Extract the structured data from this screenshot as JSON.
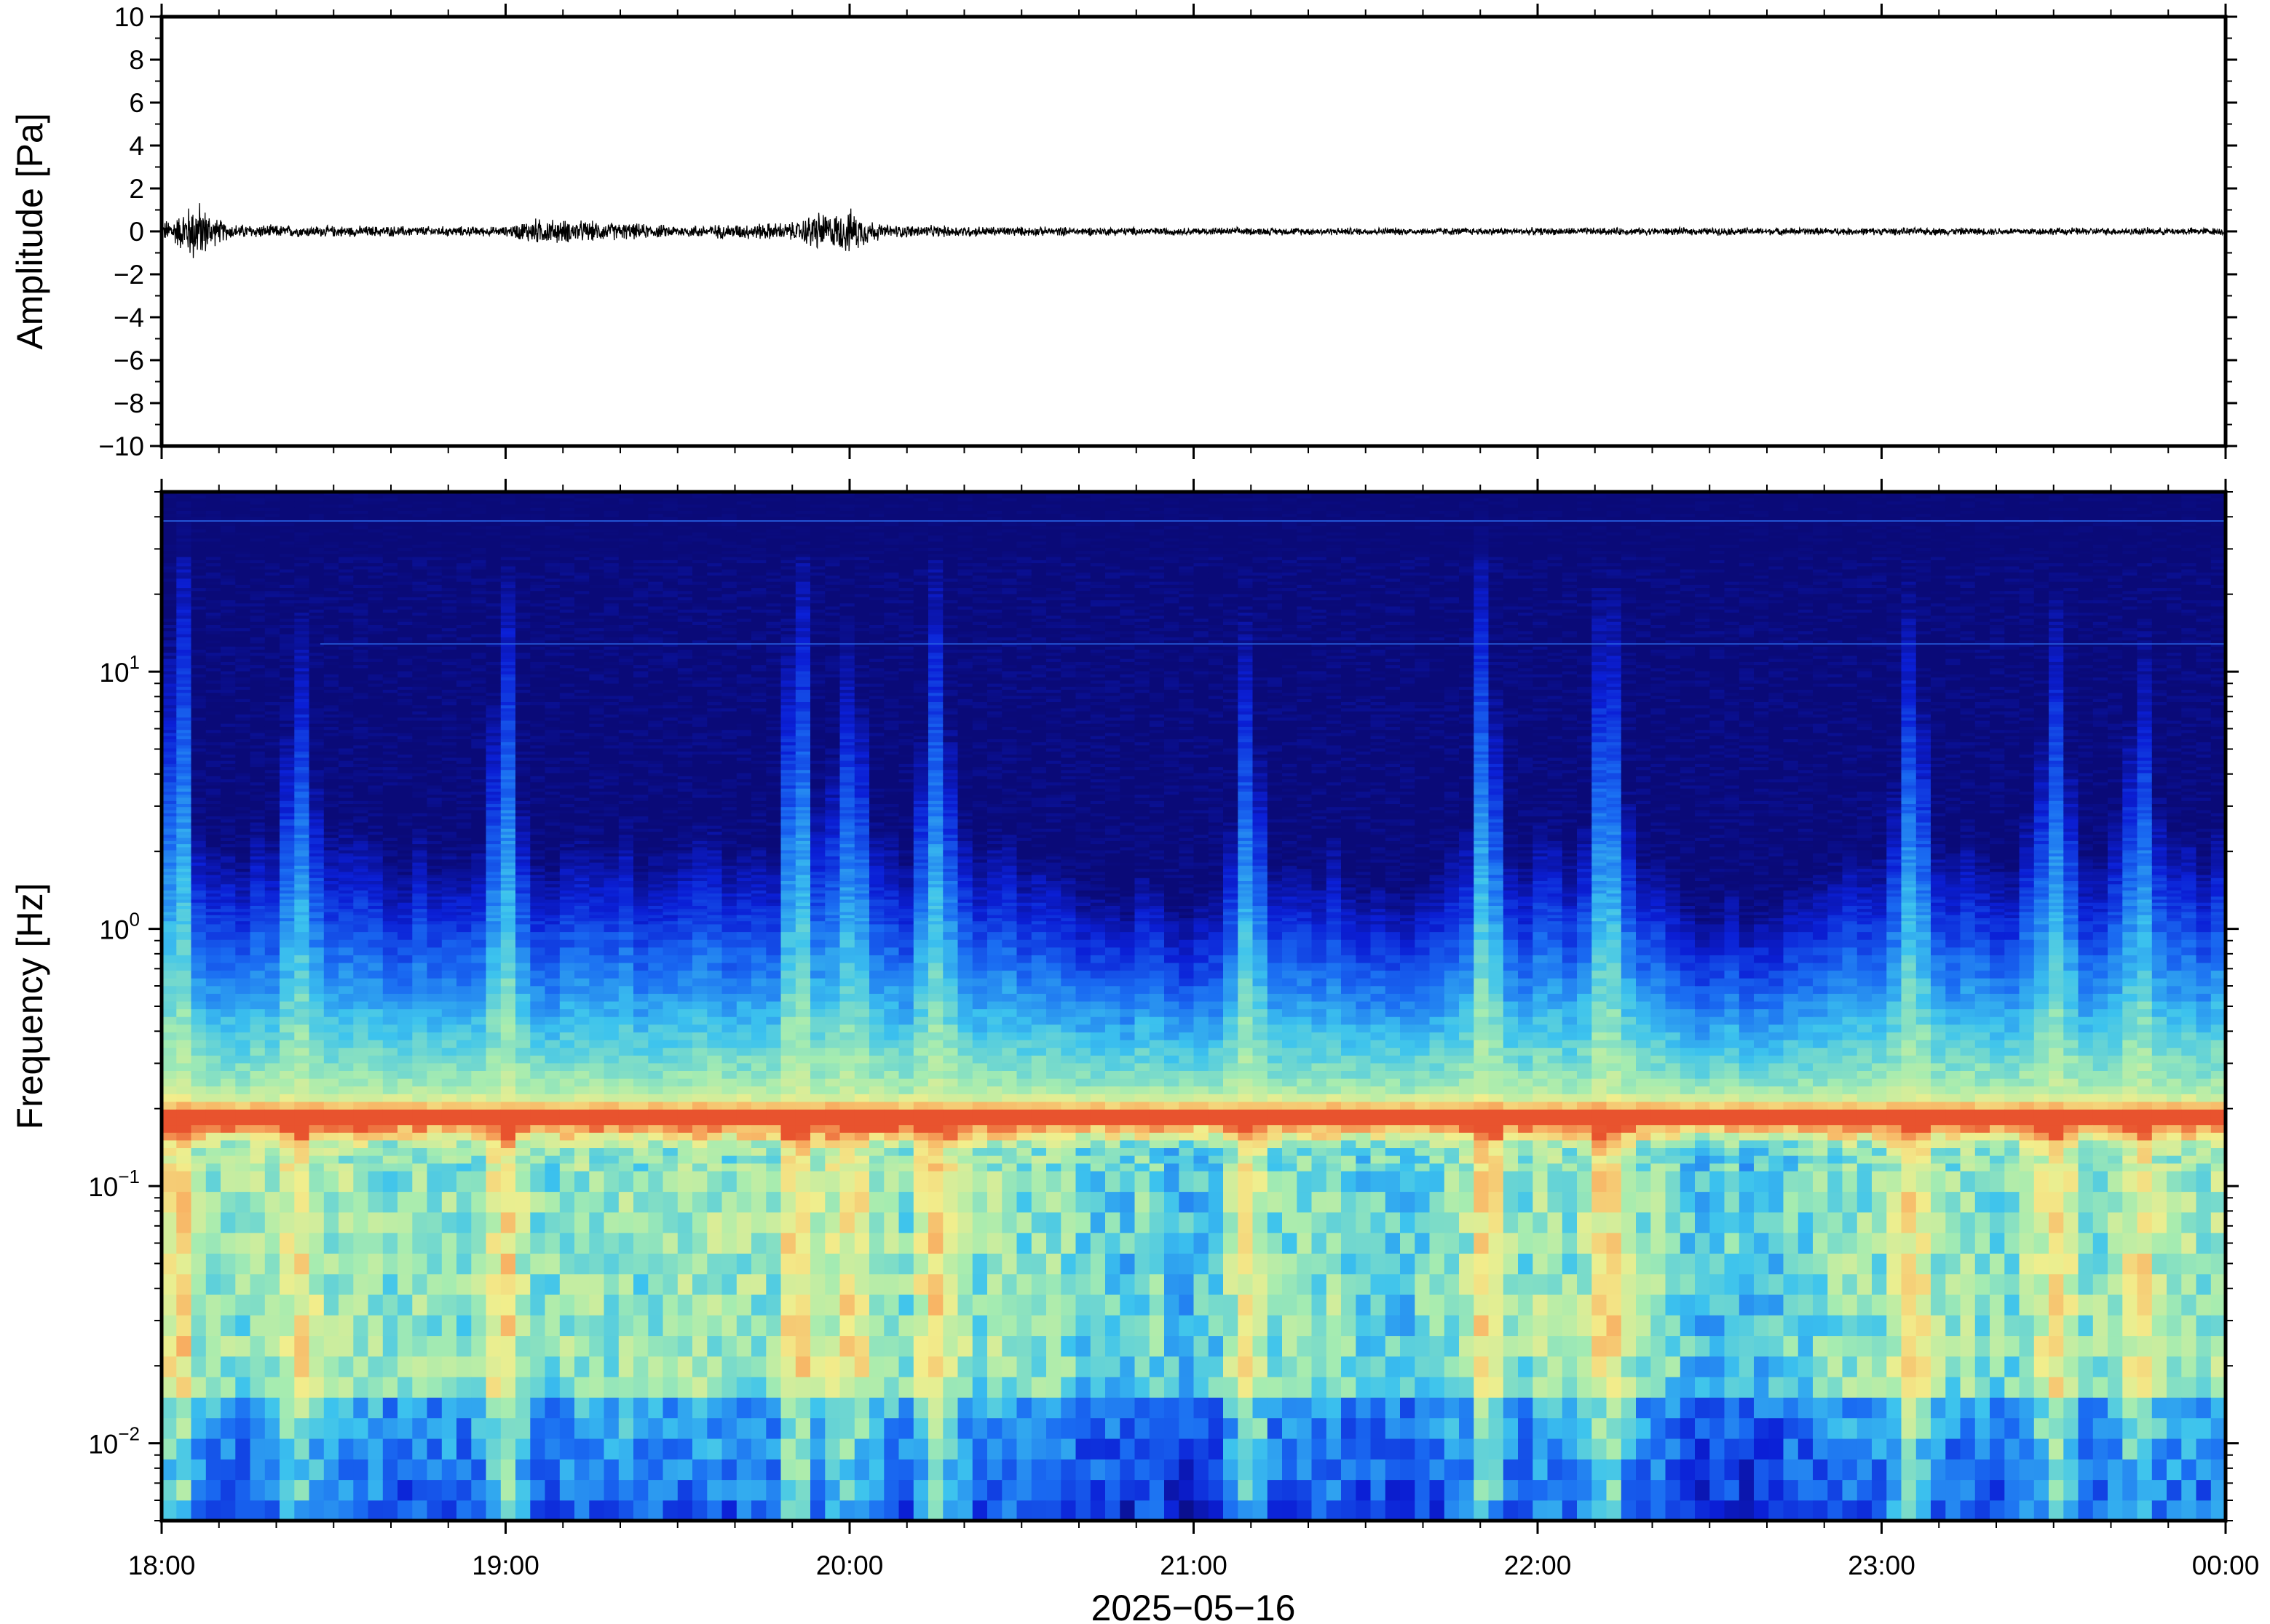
{
  "chart_data": [
    {
      "type": "line",
      "ylabel": "Amplitude [Pa]",
      "ylim": [
        -10,
        10
      ],
      "yticks": [
        "10",
        "8",
        "6",
        "4",
        "2",
        "0",
        "−2",
        "−4",
        "−6",
        "−8",
        "−10"
      ],
      "xlim": [
        "2025-05-16T18:00",
        "2025-05-17T00:00"
      ],
      "series": [
        {
          "x_hours": [
            18.0,
            18.05,
            18.1,
            18.15,
            18.2,
            18.4,
            18.5,
            19.0,
            19.08,
            19.5,
            19.85,
            19.9,
            19.95,
            20.0,
            20.05,
            20.1,
            20.5,
            21.0,
            21.5,
            22.0,
            22.5,
            23.0,
            23.5,
            24.0
          ],
          "envelope": [
            0.5,
            0.9,
            1.8,
            0.8,
            0.4,
            0.3,
            0.3,
            0.25,
            0.7,
            0.3,
            0.5,
            1.1,
            0.9,
            1.2,
            0.7,
            0.35,
            0.25,
            0.2,
            0.2,
            0.2,
            0.2,
            0.2,
            0.2,
            0.2
          ]
        }
      ]
    },
    {
      "type": "heatmap",
      "ylabel": "Frequency [Hz]",
      "yscale": "log",
      "ylim": [
        0.005,
        50
      ],
      "yticks": [
        {
          "base": "10",
          "exp": "1",
          "value": 10
        },
        {
          "base": "10",
          "exp": "0",
          "value": 1
        },
        {
          "base": "10",
          "exp": "−1",
          "value": 0.1
        },
        {
          "base": "10",
          "exp": "−2",
          "value": 0.01
        }
      ],
      "xlabel": "2025−05−16",
      "xticks": [
        "18:00",
        "19:00",
        "20:00",
        "21:00",
        "22:00",
        "23:00",
        "00:00"
      ],
      "colormap": [
        "#0a0a78",
        "#0b1fd6",
        "#1a6cf2",
        "#3cc3ee",
        "#a6ecb0",
        "#f2ee8c",
        "#f8b062",
        "#e8532e"
      ],
      "dominant_band_hz": 0.17,
      "active_hours": [
        18.05,
        18.4,
        19.0,
        19.85,
        20.0,
        20.25,
        21.15,
        21.85,
        22.2,
        23.1,
        23.5,
        23.75
      ],
      "quiet_hours": [
        20.75,
        21.0,
        21.6,
        22.5,
        22.7
      ]
    }
  ]
}
